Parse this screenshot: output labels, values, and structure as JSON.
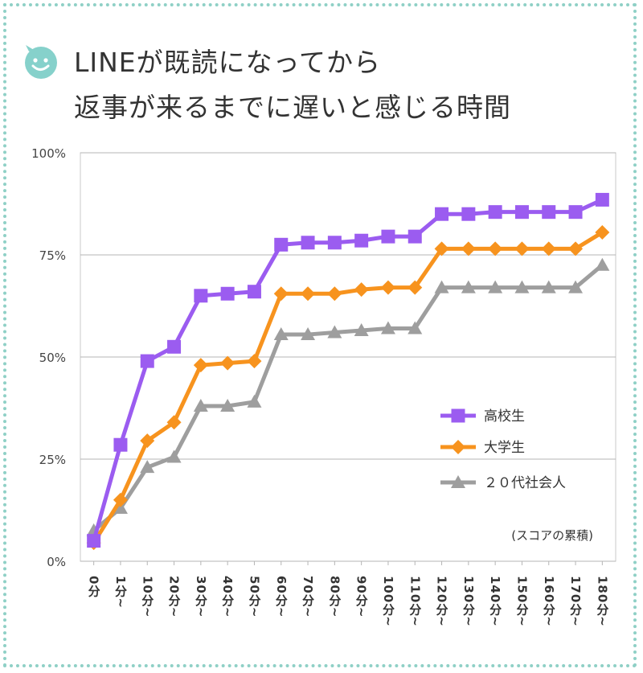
{
  "title": {
    "line1": "LINEが既読になってから",
    "line2": "返事が来るまでに遅いと感じる時間"
  },
  "icon": "smiley-bubble-icon",
  "colors": {
    "frame": "#8fd0c6",
    "icon": "#86d1cb",
    "series": [
      "#9b5cf0",
      "#f7931e",
      "#9e9e9e"
    ]
  },
  "chart_data": {
    "type": "line",
    "title": "LINEが既読になってから返事が来るまでに遅いと感じる時間",
    "categories": [
      "0分",
      "1分~",
      "10分~",
      "20分~",
      "30分~",
      "40分~",
      "50分~",
      "60分~",
      "70分~",
      "80分~",
      "90分~",
      "100分~",
      "110分~",
      "120分~",
      "130分~",
      "140分~",
      "150分~",
      "160分~",
      "170分~",
      "180分~"
    ],
    "y_ticks": [
      "0%",
      "25%",
      "50%",
      "75%",
      "100%"
    ],
    "ylim": [
      0,
      100
    ],
    "grid": true,
    "legend_position": "right",
    "annotation": "(スコアの累積)",
    "series": [
      {
        "name": "高校生",
        "marker": "square",
        "values": [
          5,
          28.5,
          49,
          52.5,
          65,
          65.5,
          66,
          77.5,
          78,
          78,
          78.5,
          79.5,
          79.5,
          85,
          85,
          85.5,
          85.5,
          85.5,
          85.5,
          88.5
        ]
      },
      {
        "name": "大学生",
        "marker": "diamond",
        "values": [
          4.5,
          15,
          29.5,
          34,
          48,
          48.5,
          49,
          65.5,
          65.5,
          65.5,
          66.5,
          67,
          67,
          76.5,
          76.5,
          76.5,
          76.5,
          76.5,
          76.5,
          80.5
        ]
      },
      {
        "name": "２０代社会人",
        "marker": "triangle",
        "values": [
          7.5,
          13,
          23,
          25.5,
          38,
          38,
          39,
          55.5,
          55.5,
          56,
          56.5,
          57,
          57,
          67,
          67,
          67,
          67,
          67,
          67,
          72.5
        ]
      }
    ]
  }
}
